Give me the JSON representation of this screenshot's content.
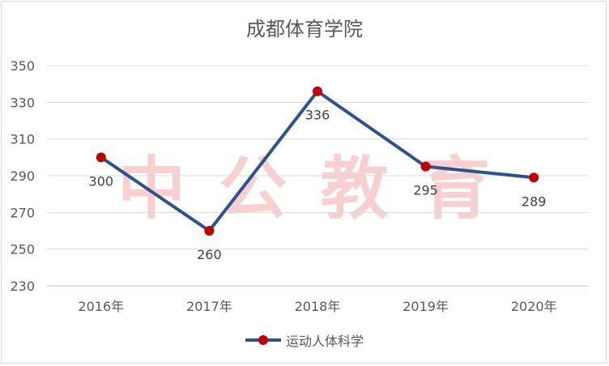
{
  "chart_data": {
    "type": "line",
    "title": "成都体育学院",
    "categories": [
      "2016年",
      "2017年",
      "2018年",
      "2019年",
      "2020年"
    ],
    "series": [
      {
        "name": "运动人体科学",
        "values": [
          300,
          260,
          336,
          295,
          289
        ]
      }
    ],
    "ylim": [
      230,
      350
    ],
    "yticks": [
      230,
      250,
      270,
      290,
      310,
      330,
      350
    ],
    "data_labels": [
      "300",
      "260",
      "336",
      "295",
      "289"
    ],
    "grid": true,
    "legend": "bottom",
    "colors": {
      "line": "#2f528f",
      "marker": "#c00000",
      "watermark": "#f8d0d0"
    }
  },
  "watermark": "中 公 教 育"
}
